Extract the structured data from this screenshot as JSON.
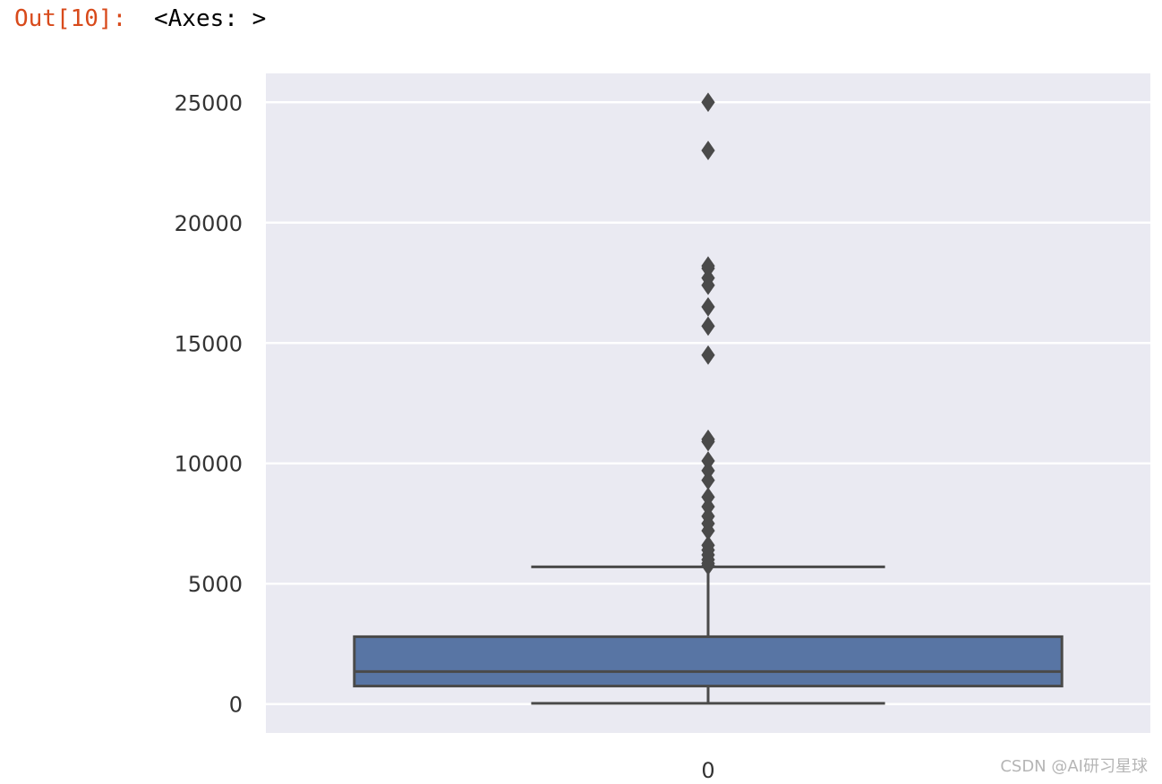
{
  "cell_output": {
    "prompt": "Out[10]:",
    "text": "<Axes: >"
  },
  "watermark": "CSDN @AI研习星球",
  "chart_data": {
    "type": "box",
    "categories": [
      "0"
    ],
    "ylim": [
      -1200,
      26200
    ],
    "yticks": [
      0,
      5000,
      10000,
      15000,
      20000,
      25000
    ],
    "ytick_labels": [
      "0",
      "5000",
      "10000",
      "15000",
      "20000",
      "25000"
    ],
    "grid": true,
    "style": "seaborn darkgrid",
    "box": {
      "min": 30,
      "q1": 750,
      "median": 1350,
      "q3": 2800,
      "max": 5700
    },
    "outliers": [
      5750,
      5850,
      6000,
      6200,
      6400,
      6600,
      7200,
      7500,
      7800,
      8200,
      8600,
      9300,
      9700,
      10100,
      10900,
      11000,
      14500,
      15700,
      16500,
      17400,
      17700,
      18100,
      18200,
      23000,
      25000
    ],
    "colors": {
      "axes_bg": "#eaeaf2",
      "grid": "#ffffff",
      "box_fill": "#5875a4",
      "lines": "#4a4a4a"
    }
  }
}
